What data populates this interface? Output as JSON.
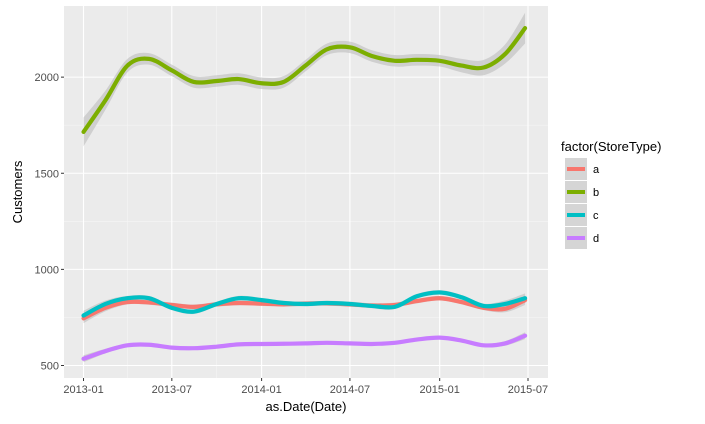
{
  "chart_data": {
    "type": "line",
    "xlabel": "as.Date(Date)",
    "ylabel": "Customers",
    "x_ticks": [
      "2013-01",
      "2013-07",
      "2014-01",
      "2014-07",
      "2015-01",
      "2015-07"
    ],
    "y_ticks": [
      500,
      1000,
      1500,
      2000
    ],
    "xlim": [
      "2012-11-22",
      "2015-08-11"
    ],
    "ylim": [
      435,
      2370
    ],
    "grid": true,
    "legend": {
      "title": "factor(StoreType)",
      "position": "right"
    },
    "x": [
      "2013-01-01",
      "2013-02-15",
      "2013-04-01",
      "2013-05-15",
      "2013-07-01",
      "2013-08-15",
      "2013-10-01",
      "2013-11-15",
      "2014-01-01",
      "2014-02-15",
      "2014-04-01",
      "2014-05-15",
      "2014-07-01",
      "2014-08-15",
      "2014-10-01",
      "2014-11-15",
      "2015-01-01",
      "2015-02-15",
      "2015-04-01",
      "2015-05-15",
      "2015-06-25"
    ],
    "series": [
      {
        "name": "a",
        "color": "#F8766D",
        "values": [
          745,
          800,
          830,
          828,
          815,
          805,
          818,
          825,
          822,
          818,
          822,
          823,
          818,
          812,
          815,
          835,
          850,
          830,
          800,
          795,
          840
        ]
      },
      {
        "name": "b",
        "color": "#7CAE00",
        "values": [
          1715,
          1880,
          2060,
          2095,
          2035,
          1975,
          1980,
          1990,
          1968,
          1975,
          2060,
          2145,
          2155,
          2110,
          2085,
          2090,
          2085,
          2060,
          2050,
          2120,
          2255
        ]
      },
      {
        "name": "c",
        "color": "#00BFC4",
        "values": [
          760,
          820,
          850,
          850,
          800,
          780,
          820,
          850,
          840,
          825,
          820,
          825,
          820,
          810,
          805,
          860,
          880,
          855,
          810,
          820,
          850
        ]
      },
      {
        "name": "d",
        "color": "#C77CFF",
        "values": [
          535,
          575,
          605,
          608,
          593,
          590,
          598,
          610,
          612,
          613,
          615,
          618,
          615,
          612,
          618,
          635,
          645,
          630,
          605,
          615,
          655
        ]
      }
    ],
    "confidence_band": [
      {
        "series": "a",
        "halfwidth": [
          25,
          18,
          12,
          12,
          12,
          12,
          12,
          12,
          12,
          12,
          12,
          12,
          12,
          12,
          12,
          12,
          12,
          12,
          12,
          18,
          25
        ]
      },
      {
        "series": "b",
        "halfwidth": [
          75,
          50,
          35,
          30,
          30,
          30,
          30,
          30,
          30,
          30,
          30,
          30,
          30,
          30,
          30,
          30,
          30,
          35,
          40,
          50,
          80
        ]
      },
      {
        "series": "c",
        "halfwidth": [
          25,
          18,
          12,
          12,
          12,
          12,
          12,
          12,
          12,
          12,
          12,
          12,
          12,
          12,
          12,
          12,
          12,
          12,
          12,
          18,
          25
        ]
      },
      {
        "series": "d",
        "halfwidth": [
          18,
          12,
          8,
          8,
          8,
          8,
          8,
          8,
          8,
          8,
          8,
          8,
          8,
          8,
          8,
          8,
          8,
          8,
          8,
          12,
          18
        ]
      }
    ]
  }
}
